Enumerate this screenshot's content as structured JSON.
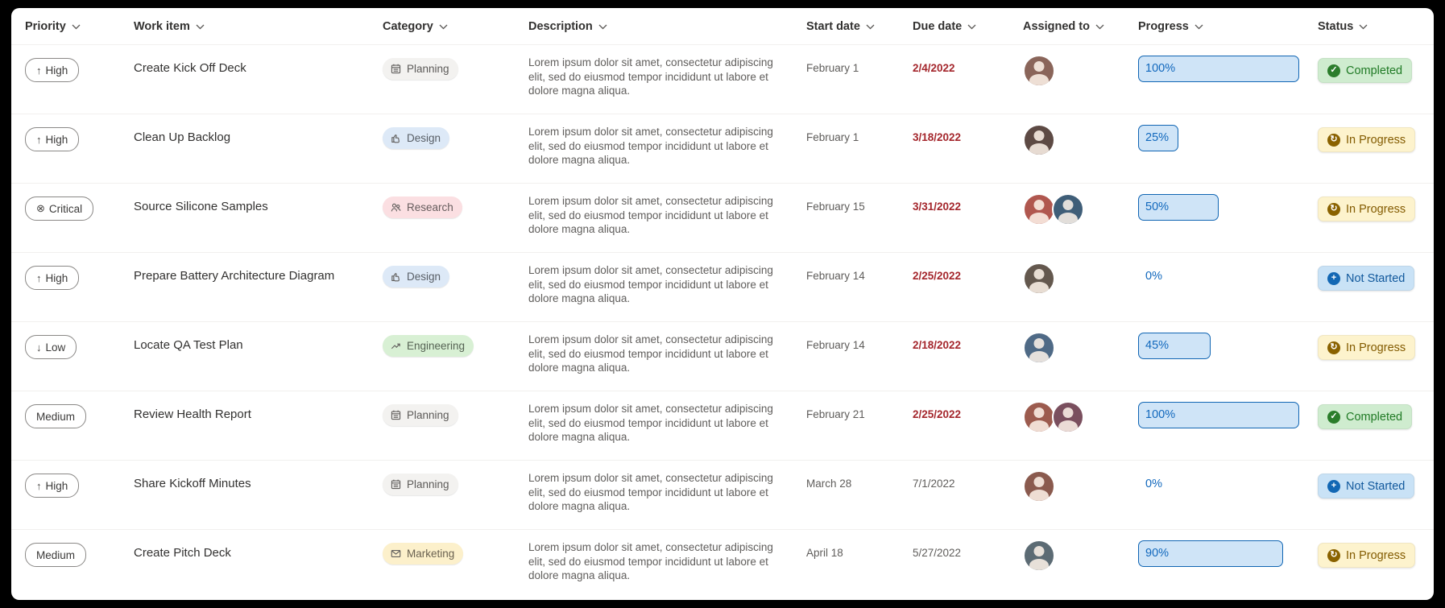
{
  "table": {
    "columns": [
      {
        "label": "Priority"
      },
      {
        "label": "Work item"
      },
      {
        "label": "Category"
      },
      {
        "label": "Description"
      },
      {
        "label": "Start date"
      },
      {
        "label": "Due date"
      },
      {
        "label": "Assigned to"
      },
      {
        "label": "Progress"
      },
      {
        "label": "Status"
      }
    ],
    "rows": [
      {
        "priority": {
          "label": "High",
          "icon": "up"
        },
        "work_item": "Create Kick Off Deck",
        "category": {
          "label": "Planning",
          "icon": "calendar",
          "bg": "#f3f2f0",
          "fg": "#5c5a58"
        },
        "description": "Lorem ipsum dolor sit amet, consectetur adipiscing elit, sed do eiusmod tempor incididunt ut labore et dolore magna aliqua.",
        "start_date": "February 1",
        "due_date": {
          "label": "2/4/2022",
          "overdue": true
        },
        "assigned_to": [
          "#8a655a"
        ],
        "progress": {
          "label": "100%",
          "value": 100
        },
        "status": {
          "label": "Completed",
          "type": "completed"
        }
      },
      {
        "priority": {
          "label": "High",
          "icon": "up"
        },
        "work_item": "Clean Up Backlog",
        "category": {
          "label": "Design",
          "icon": "thumb",
          "bg": "#dde9f7",
          "fg": "#585e66"
        },
        "description": "Lorem ipsum dolor sit amet, consectetur adipiscing elit, sed do eiusmod tempor incididunt ut labore et dolore magna aliqua.",
        "start_date": "February 1",
        "due_date": {
          "label": "3/18/2022",
          "overdue": true
        },
        "assigned_to": [
          "#5d4a44"
        ],
        "progress": {
          "label": "25%",
          "value": 25
        },
        "status": {
          "label": "In Progress",
          "type": "in-progress"
        }
      },
      {
        "priority": {
          "label": "Critical",
          "icon": "critical"
        },
        "work_item": "Source Silicone Samples",
        "category": {
          "label": "Research",
          "icon": "people",
          "bg": "#fbdfe2",
          "fg": "#665c5d"
        },
        "description": "Lorem ipsum dolor sit amet, consectetur adipiscing elit, sed do eiusmod tempor incididunt ut labore et dolore magna aliqua.",
        "start_date": "February 15",
        "due_date": {
          "label": "3/31/2022",
          "overdue": true
        },
        "assigned_to": [
          "#b0574f",
          "#3f5e78"
        ],
        "progress": {
          "label": "50%",
          "value": 50
        },
        "status": {
          "label": "In Progress",
          "type": "in-progress"
        }
      },
      {
        "priority": {
          "label": "High",
          "icon": "up"
        },
        "work_item": "Prepare Battery Architecture Diagram",
        "category": {
          "label": "Design",
          "icon": "thumb",
          "bg": "#dde9f7",
          "fg": "#585e66"
        },
        "description": "Lorem ipsum dolor sit amet, consectetur adipiscing elit, sed do eiusmod tempor incididunt ut labore et dolore magna aliqua.",
        "start_date": "February 14",
        "due_date": {
          "label": "2/25/2022",
          "overdue": true
        },
        "assigned_to": [
          "#64584e"
        ],
        "progress": {
          "label": "0%",
          "value": 0
        },
        "status": {
          "label": "Not Started",
          "type": "not-started"
        }
      },
      {
        "priority": {
          "label": "Low",
          "icon": "down"
        },
        "work_item": "Locate QA Test Plan",
        "category": {
          "label": "Engineering",
          "icon": "trend",
          "bg": "#d8f0d4",
          "fg": "#566354"
        },
        "description": "Lorem ipsum dolor sit amet, consectetur adipiscing elit, sed do eiusmod tempor incididunt ut labore et dolore magna aliqua.",
        "start_date": "February 14",
        "due_date": {
          "label": "2/18/2022",
          "overdue": true
        },
        "assigned_to": [
          "#4f6a86"
        ],
        "progress": {
          "label": "45%",
          "value": 45
        },
        "status": {
          "label": "In Progress",
          "type": "in-progress"
        }
      },
      {
        "priority": {
          "label": "Medium",
          "icon": ""
        },
        "work_item": "Review Health Report",
        "category": {
          "label": "Planning",
          "icon": "calendar",
          "bg": "#f3f2f0",
          "fg": "#5c5a58"
        },
        "description": "Lorem ipsum dolor sit amet, consectetur adipiscing elit, sed do eiusmod tempor incididunt ut labore et dolore magna aliqua.",
        "start_date": "February 21",
        "due_date": {
          "label": "2/25/2022",
          "overdue": true
        },
        "assigned_to": [
          "#9c5b4e",
          "#7a4f5e"
        ],
        "progress": {
          "label": "100%",
          "value": 100
        },
        "status": {
          "label": "Completed",
          "type": "completed"
        }
      },
      {
        "priority": {
          "label": "High",
          "icon": "up"
        },
        "work_item": "Share Kickoff Minutes",
        "category": {
          "label": "Planning",
          "icon": "calendar",
          "bg": "#f3f2f0",
          "fg": "#5c5a58"
        },
        "description": "Lorem ipsum dolor sit amet, consectetur adipiscing elit, sed do eiusmod tempor incididunt ut labore et dolore magna aliqua.",
        "start_date": "March 28",
        "due_date": {
          "label": "7/1/2022",
          "overdue": false
        },
        "assigned_to": [
          "#8a5a4e"
        ],
        "progress": {
          "label": "0%",
          "value": 0
        },
        "status": {
          "label": "Not Started",
          "type": "not-started"
        }
      },
      {
        "priority": {
          "label": "Medium",
          "icon": ""
        },
        "work_item": "Create Pitch Deck",
        "category": {
          "label": "Marketing",
          "icon": "mail",
          "bg": "#fcf0cb",
          "fg": "#6a6150"
        },
        "description": "Lorem ipsum dolor sit amet, consectetur adipiscing elit, sed do eiusmod tempor incididunt ut labore et dolore magna aliqua.",
        "start_date": "April 18",
        "due_date": {
          "label": "5/27/2022",
          "overdue": false
        },
        "assigned_to": [
          "#5c6b74"
        ],
        "progress": {
          "label": "90%",
          "value": 90
        },
        "status": {
          "label": "In Progress",
          "type": "in-progress"
        }
      }
    ]
  },
  "priority_icons": {
    "up": "↑",
    "down": "↓",
    "critical": "⊗"
  },
  "status_styles": {
    "completed": {
      "bg": "#cfeccf",
      "fg": "#207a25",
      "badge": "#2b7d2b",
      "glyph": "✓"
    },
    "in-progress": {
      "bg": "#fdf3cd",
      "fg": "#835b00",
      "badge": "#8a6200",
      "glyph": "↻"
    },
    "not-started": {
      "bg": "#c9e2f6",
      "fg": "#11589c",
      "badge": "#1267b4",
      "glyph": "+"
    }
  },
  "progress_style": {
    "fill": "#cfe4f7",
    "border": "#1065b3",
    "text": "#1168bd"
  },
  "colors": {
    "overdue_red": "#a4262c",
    "row_divider": "#f1f0ee",
    "header_text": "#323130"
  }
}
